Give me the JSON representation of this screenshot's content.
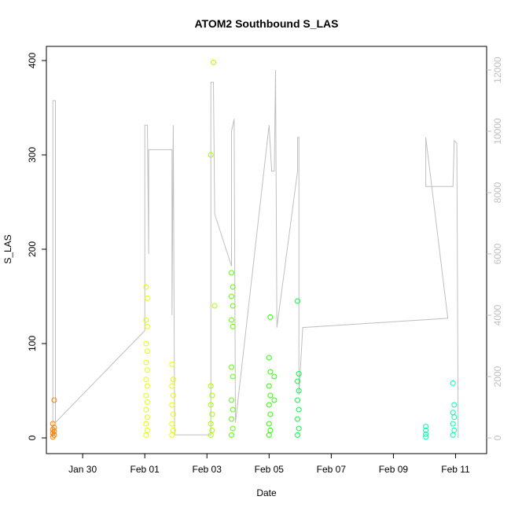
{
  "chart_data": {
    "type": "scatter",
    "title": "ATOM2 Southbound S_LAS",
    "xlabel": "Date",
    "ylabel": "S_LAS",
    "x_ticks": [
      "Jan 30",
      "Feb 01",
      "Feb 03",
      "Feb 05",
      "Feb 07",
      "Feb 09",
      "Feb 11"
    ],
    "xlim": [
      "2014-01-28T20:00",
      "2014-02-12T00:00"
    ],
    "ylim": [
      0,
      400
    ],
    "y_ticks": [
      0,
      100,
      200,
      300,
      400
    ],
    "y2_ticks": [
      0,
      2000,
      4000,
      6000,
      8000,
      10000,
      12000
    ],
    "y2lim": [
      0,
      12000
    ],
    "line_color": "#bfbfbf",
    "right_axis_color": "#bfbfbf",
    "grid": false,
    "legend": "none",
    "series": [
      {
        "color": "#ff7f00",
        "points": [
          [
            "2014-01-29T02:00",
            40
          ],
          [
            "2014-01-29T01:00",
            15
          ],
          [
            "2014-01-29T02:00",
            11
          ],
          [
            "2014-01-29T01:00",
            9
          ],
          [
            "2014-01-29T02:00",
            7
          ],
          [
            "2014-01-29T01:00",
            5
          ],
          [
            "2014-01-29T02:00",
            3
          ],
          [
            "2014-01-29T01:00",
            1
          ]
        ]
      },
      {
        "color": "#e8ff00",
        "points": [
          [
            "2014-02-01T01:00",
            160
          ],
          [
            "2014-02-01T02:00",
            148
          ],
          [
            "2014-02-01T01:00",
            125
          ],
          [
            "2014-02-01T02:00",
            118
          ],
          [
            "2014-02-01T01:00",
            100
          ],
          [
            "2014-02-01T02:00",
            92
          ],
          [
            "2014-02-01T01:00",
            80
          ],
          [
            "2014-02-01T02:00",
            72
          ],
          [
            "2014-02-01T01:00",
            62
          ],
          [
            "2014-02-01T02:00",
            55
          ],
          [
            "2014-02-01T01:00",
            45
          ],
          [
            "2014-02-01T02:00",
            38
          ],
          [
            "2014-02-01T01:00",
            30
          ],
          [
            "2014-02-01T02:00",
            22
          ],
          [
            "2014-02-01T01:00",
            15
          ],
          [
            "2014-02-01T02:00",
            8
          ],
          [
            "2014-02-01T01:00",
            3
          ],
          [
            "2014-02-01T21:00",
            78
          ],
          [
            "2014-02-01T22:00",
            62
          ],
          [
            "2014-02-01T21:00",
            55
          ],
          [
            "2014-02-01T22:00",
            45
          ],
          [
            "2014-02-01T21:00",
            35
          ],
          [
            "2014-02-01T22:00",
            25
          ],
          [
            "2014-02-01T21:00",
            15
          ],
          [
            "2014-02-01T22:00",
            8
          ],
          [
            "2014-02-01T21:00",
            3
          ]
        ]
      },
      {
        "color": "#a8ff00",
        "points": [
          [
            "2014-02-03T05:00",
            398
          ],
          [
            "2014-02-03T03:00",
            300
          ],
          [
            "2014-02-03T06:00",
            140
          ],
          [
            "2014-02-03T03:00",
            55
          ],
          [
            "2014-02-03T04:00",
            45
          ],
          [
            "2014-02-03T03:00",
            35
          ],
          [
            "2014-02-03T04:00",
            25
          ],
          [
            "2014-02-03T03:00",
            15
          ],
          [
            "2014-02-03T04:00",
            8
          ],
          [
            "2014-02-03T03:00",
            3
          ]
        ]
      },
      {
        "color": "#5cff00",
        "points": [
          [
            "2014-02-03T19:00",
            175
          ],
          [
            "2014-02-03T20:00",
            160
          ],
          [
            "2014-02-03T19:00",
            150
          ],
          [
            "2014-02-03T20:00",
            140
          ],
          [
            "2014-02-03T19:00",
            125
          ],
          [
            "2014-02-03T20:00",
            118
          ],
          [
            "2014-02-03T19:00",
            75
          ],
          [
            "2014-02-03T20:00",
            65
          ],
          [
            "2014-02-03T19:00",
            40
          ],
          [
            "2014-02-03T20:00",
            30
          ],
          [
            "2014-02-03T19:00",
            20
          ],
          [
            "2014-02-03T20:00",
            10
          ],
          [
            "2014-02-03T19:00",
            3
          ]
        ]
      },
      {
        "color": "#2cff00",
        "points": [
          [
            "2014-02-05T01:00",
            128
          ],
          [
            "2014-02-05T00:00",
            85
          ],
          [
            "2014-02-05T01:00",
            70
          ],
          [
            "2014-02-05T00:00",
            55
          ],
          [
            "2014-02-05T01:00",
            45
          ],
          [
            "2014-02-05T00:00",
            35
          ],
          [
            "2014-02-05T01:00",
            25
          ],
          [
            "2014-02-05T00:00",
            15
          ],
          [
            "2014-02-05T01:00",
            8
          ],
          [
            "2014-02-05T00:00",
            3
          ],
          [
            "2014-02-05T04:00",
            65
          ],
          [
            "2014-02-05T04:00",
            40
          ]
        ]
      },
      {
        "color": "#00ff3c",
        "points": [
          [
            "2014-02-05T22:00",
            145
          ],
          [
            "2014-02-05T23:00",
            68
          ],
          [
            "2014-02-05T22:00",
            60
          ],
          [
            "2014-02-05T23:00",
            50
          ],
          [
            "2014-02-05T22:00",
            40
          ],
          [
            "2014-02-05T23:00",
            30
          ],
          [
            "2014-02-05T22:00",
            20
          ],
          [
            "2014-02-05T23:00",
            10
          ],
          [
            "2014-02-05T22:00",
            3
          ]
        ]
      },
      {
        "color": "#00ffae",
        "points": [
          [
            "2014-02-10T01:00",
            12
          ],
          [
            "2014-02-10T01:00",
            8
          ],
          [
            "2014-02-10T01:00",
            4
          ],
          [
            "2014-02-10T01:00",
            1
          ],
          [
            "2014-02-10T22:00",
            58
          ],
          [
            "2014-02-10T23:00",
            35
          ],
          [
            "2014-02-10T22:00",
            27
          ],
          [
            "2014-02-10T23:00",
            22
          ],
          [
            "2014-02-10T22:00",
            15
          ],
          [
            "2014-02-10T23:00",
            8
          ],
          [
            "2014-02-10T22:00",
            3
          ]
        ]
      }
    ],
    "line_series": {
      "y2_points": [
        [
          "2014-01-29T01:00",
          0
        ],
        [
          "2014-01-29T01:00",
          2000
        ],
        [
          "2014-01-29T01:00",
          11000
        ],
        [
          "2014-01-29T03:00",
          11000
        ],
        [
          "2014-01-29T03:00",
          500
        ],
        [
          "2014-02-01T00:00",
          3500
        ],
        [
          "2014-02-01T00:00",
          10200
        ],
        [
          "2014-02-01T02:00",
          10200
        ],
        [
          "2014-02-01T03:00",
          6000
        ],
        [
          "2014-02-01T03:00",
          9400
        ],
        [
          "2014-02-01T21:00",
          9400
        ],
        [
          "2014-02-01T21:00",
          4000
        ],
        [
          "2014-02-01T22:00",
          10200
        ],
        [
          "2014-02-01T23:00",
          100
        ],
        [
          "2014-02-03T03:00",
          100
        ],
        [
          "2014-02-03T03:00",
          11600
        ],
        [
          "2014-02-03T05:00",
          11600
        ],
        [
          "2014-02-03T06:00",
          7300
        ],
        [
          "2014-02-03T19:00",
          5600
        ],
        [
          "2014-02-03T19:00",
          10000
        ],
        [
          "2014-02-03T21:00",
          10400
        ],
        [
          "2014-02-03T22:00",
          500
        ],
        [
          "2014-02-05T00:00",
          10200
        ],
        [
          "2014-02-05T02:00",
          8700
        ],
        [
          "2014-02-05T04:00",
          8700
        ],
        [
          "2014-02-05T05:00",
          12000
        ],
        [
          "2014-02-05T06:00",
          3600
        ],
        [
          "2014-02-05T22:00",
          8700
        ],
        [
          "2014-02-05T22:00",
          9800
        ],
        [
          "2014-02-05T23:00",
          9800
        ],
        [
          "2014-02-05T23:00",
          1400
        ],
        [
          "2014-02-06T02:00",
          3600
        ],
        [
          "2014-02-10T18:00",
          3900
        ],
        [
          "2014-02-10T01:00",
          9800
        ],
        [
          "2014-02-10T01:00",
          8200
        ],
        [
          "2014-02-10T22:00",
          8200
        ],
        [
          "2014-02-10T23:00",
          9700
        ],
        [
          "2014-02-11T01:00",
          9600
        ],
        [
          "2014-02-11T02:00",
          0
        ]
      ]
    }
  }
}
